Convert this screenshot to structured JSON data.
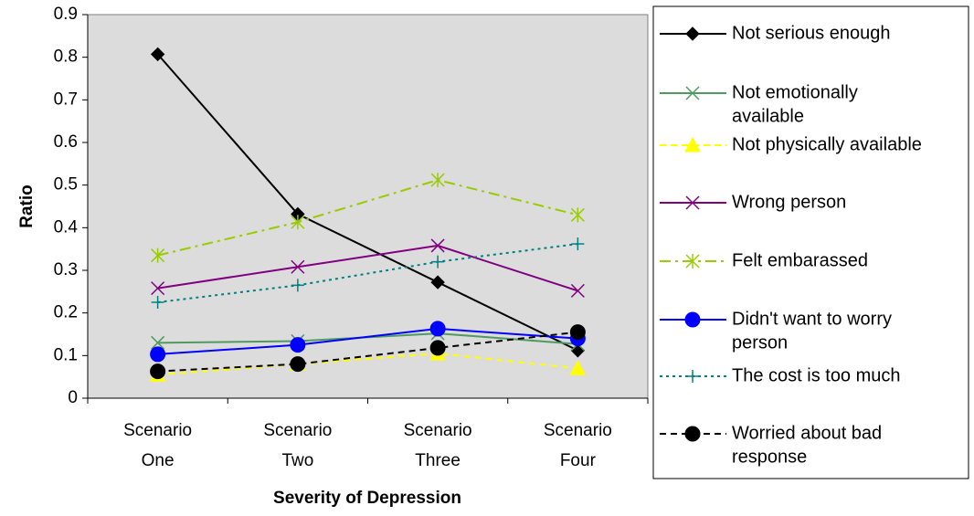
{
  "chart_data": {
    "type": "line",
    "xlabel": "Severity of Depression",
    "ylabel": "Ratio",
    "ylim": [
      0,
      0.9
    ],
    "ytick_step": 0.1,
    "grid": false,
    "legend_position": "right",
    "plot_background": "#dcdcdc",
    "categories": [
      [
        "Scenario",
        "One"
      ],
      [
        "Scenario",
        "Two"
      ],
      [
        "Scenario",
        "Three"
      ],
      [
        "Scenario",
        "Four"
      ]
    ],
    "series": [
      {
        "name": [
          "Not serious enough"
        ],
        "values": [
          0.807,
          0.432,
          0.272,
          0.112
        ],
        "color": "#000000",
        "dash": "solid",
        "marker": "diamond"
      },
      {
        "name": [
          "Not emotionally",
          "available"
        ],
        "values": [
          0.13,
          0.134,
          0.152,
          0.127
        ],
        "color": "#4f9a5e",
        "dash": "solid",
        "marker": "x"
      },
      {
        "name": [
          "Not physically available"
        ],
        "values": [
          0.055,
          0.08,
          0.105,
          0.07
        ],
        "color": "#ffff00",
        "dash": "dash",
        "marker": "triangle"
      },
      {
        "name": [
          "Wrong person"
        ],
        "values": [
          0.258,
          0.308,
          0.358,
          0.252
        ],
        "color": "#800080",
        "dash": "solid",
        "marker": "x"
      },
      {
        "name": [
          "Felt embarassed"
        ],
        "values": [
          0.335,
          0.413,
          0.512,
          0.43
        ],
        "color": "#99cc00",
        "dash": "dashdot",
        "marker": "star"
      },
      {
        "name": [
          "Didn't want to worry",
          "person"
        ],
        "values": [
          0.103,
          0.125,
          0.163,
          0.14
        ],
        "color": "#0000ff",
        "dash": "solid",
        "marker": "circle"
      },
      {
        "name": [
          "The cost is too much"
        ],
        "values": [
          0.225,
          0.265,
          0.32,
          0.362
        ],
        "color": "#008080",
        "dash": "dot",
        "marker": "plus"
      },
      {
        "name": [
          "Worried about bad",
          "response"
        ],
        "values": [
          0.063,
          0.08,
          0.118,
          0.155
        ],
        "color": "#000000",
        "dash": "dash",
        "marker": "circle"
      }
    ]
  }
}
